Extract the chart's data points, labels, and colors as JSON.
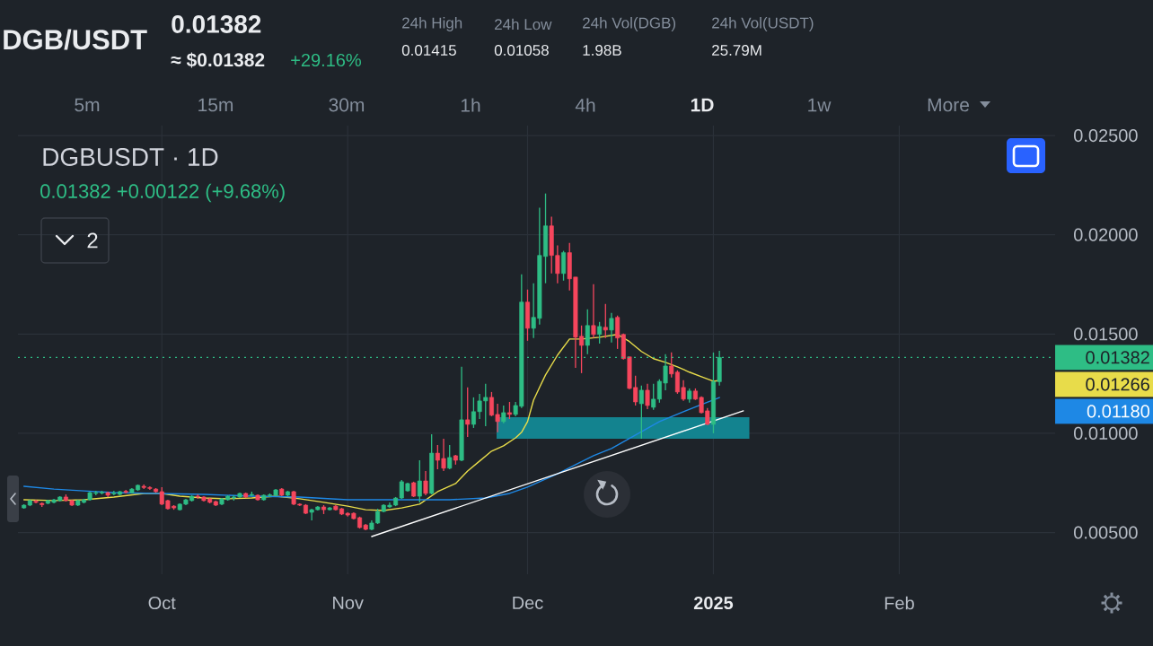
{
  "chart_data": {
    "type": "candlestick",
    "title": "DGBUSDT · 1D",
    "subtitle": "0.01382 +0.00122 (+9.68%)",
    "annotations": [
      "DGB/USDT",
      "0.01382",
      "≈ $0.01382",
      "+29.16%",
      "24h High",
      "0.01415",
      "24h Low",
      "0.01058",
      "24h Vol(DGB)",
      "1.98B",
      "24h Vol(USDT)",
      "25.79M",
      "5m",
      "15m",
      "30m",
      "1h",
      "4h",
      "1D",
      "1w",
      "More",
      "2",
      "0.01266",
      "0.01180"
    ],
    "x": [
      "2024-09-08",
      "2024-09-09",
      "2024-09-10",
      "2024-09-11",
      "2024-09-12",
      "2024-09-13",
      "2024-09-14",
      "2024-09-15",
      "2024-09-16",
      "2024-09-17",
      "2024-09-18",
      "2024-09-19",
      "2024-09-20",
      "2024-09-21",
      "2024-09-22",
      "2024-09-23",
      "2024-09-24",
      "2024-09-25",
      "2024-09-26",
      "2024-09-27",
      "2024-09-28",
      "2024-09-29",
      "2024-09-30",
      "2024-10-01",
      "2024-10-02",
      "2024-10-03",
      "2024-10-04",
      "2024-10-05",
      "2024-10-06",
      "2024-10-07",
      "2024-10-08",
      "2024-10-09",
      "2024-10-10",
      "2024-10-11",
      "2024-10-12",
      "2024-10-13",
      "2024-10-14",
      "2024-10-15",
      "2024-10-16",
      "2024-10-17",
      "2024-10-18",
      "2024-10-19",
      "2024-10-20",
      "2024-10-21",
      "2024-10-22",
      "2024-10-23",
      "2024-10-24",
      "2024-10-25",
      "2024-10-26",
      "2024-10-27",
      "2024-10-28",
      "2024-10-29",
      "2024-10-30",
      "2024-10-31",
      "2024-11-01",
      "2024-11-02",
      "2024-11-03",
      "2024-11-04",
      "2024-11-05",
      "2024-11-06",
      "2024-11-07",
      "2024-11-08",
      "2024-11-09",
      "2024-11-10",
      "2024-11-11",
      "2024-11-12",
      "2024-11-13",
      "2024-11-14",
      "2024-11-15",
      "2024-11-16",
      "2024-11-17",
      "2024-11-18",
      "2024-11-19",
      "2024-11-20",
      "2024-11-21",
      "2024-11-22",
      "2024-11-23",
      "2024-11-24",
      "2024-11-25",
      "2024-11-26",
      "2024-11-27",
      "2024-11-28",
      "2024-11-29",
      "2024-11-30",
      "2024-12-01",
      "2024-12-02",
      "2024-12-03",
      "2024-12-04",
      "2024-12-05",
      "2024-12-06",
      "2024-12-07",
      "2024-12-08",
      "2024-12-09",
      "2024-12-10",
      "2024-12-11",
      "2024-12-12",
      "2024-12-13",
      "2024-12-14",
      "2024-12-15",
      "2024-12-16",
      "2024-12-17",
      "2024-12-18",
      "2024-12-19",
      "2024-12-20",
      "2024-12-21",
      "2024-12-22",
      "2024-12-23",
      "2024-12-24",
      "2024-12-25",
      "2024-12-26",
      "2024-12-27",
      "2024-12-28",
      "2024-12-29",
      "2024-12-30",
      "2024-12-31",
      "2025-01-01",
      "2025-01-02"
    ],
    "ohlc": [
      [
        0.00624,
        0.00643,
        0.0062,
        0.00638
      ],
      [
        0.00638,
        0.00665,
        0.00633,
        0.00661
      ],
      [
        0.00658,
        0.00665,
        0.00647,
        0.00652
      ],
      [
        0.00647,
        0.00652,
        0.00629,
        0.0064
      ],
      [
        0.00647,
        0.00665,
        0.00643,
        0.00661
      ],
      [
        0.00652,
        0.0067,
        0.00647,
        0.00665
      ],
      [
        0.00661,
        0.00683,
        0.00656,
        0.00679
      ],
      [
        0.00679,
        0.00692,
        0.00656,
        0.00661
      ],
      [
        0.00661,
        0.00665,
        0.00633,
        0.00638
      ],
      [
        0.00638,
        0.00665,
        0.00633,
        0.00661
      ],
      [
        0.00652,
        0.0067,
        0.00647,
        0.00665
      ],
      [
        0.00665,
        0.00706,
        0.00661,
        0.00701
      ],
      [
        0.00697,
        0.0071,
        0.00688,
        0.00701
      ],
      [
        0.00699,
        0.0071,
        0.00692,
        0.00703
      ],
      [
        0.00701,
        0.00706,
        0.00679,
        0.00688
      ],
      [
        0.00695,
        0.0071,
        0.00688,
        0.00699
      ],
      [
        0.00692,
        0.0071,
        0.00688,
        0.00706
      ],
      [
        0.00708,
        0.00715,
        0.00697,
        0.00703
      ],
      [
        0.00701,
        0.00724,
        0.00697,
        0.00719
      ],
      [
        0.00715,
        0.00742,
        0.0071,
        0.00738
      ],
      [
        0.00733,
        0.00742,
        0.00719,
        0.00727
      ],
      [
        0.00727,
        0.00733,
        0.00715,
        0.00722
      ],
      [
        0.00719,
        0.00724,
        0.00701,
        0.00706
      ],
      [
        0.00706,
        0.00729,
        0.00638,
        0.00643
      ],
      [
        0.00661,
        0.00665,
        0.00615,
        0.0062
      ],
      [
        0.00633,
        0.00638,
        0.00615,
        0.00624
      ],
      [
        0.00615,
        0.00647,
        0.00611,
        0.00643
      ],
      [
        0.00643,
        0.0067,
        0.00638,
        0.00665
      ],
      [
        0.00661,
        0.00688,
        0.00656,
        0.00683
      ],
      [
        0.00683,
        0.00692,
        0.0067,
        0.00679
      ],
      [
        0.00679,
        0.00683,
        0.00656,
        0.00661
      ],
      [
        0.0067,
        0.00674,
        0.00647,
        0.00652
      ],
      [
        0.00656,
        0.00661,
        0.00633,
        0.00638
      ],
      [
        0.00643,
        0.00674,
        0.00638,
        0.0067
      ],
      [
        0.00665,
        0.00688,
        0.00661,
        0.00683
      ],
      [
        0.00674,
        0.00688,
        0.00661,
        0.00679
      ],
      [
        0.00679,
        0.00701,
        0.00674,
        0.00697
      ],
      [
        0.00697,
        0.00701,
        0.00674,
        0.00679
      ],
      [
        0.00688,
        0.00706,
        0.00683,
        0.00692
      ],
      [
        0.00688,
        0.00692,
        0.00661,
        0.00665
      ],
      [
        0.00665,
        0.00692,
        0.00661,
        0.00688
      ],
      [
        0.00686,
        0.00697,
        0.00679,
        0.0069
      ],
      [
        0.00688,
        0.00719,
        0.00683,
        0.00715
      ],
      [
        0.00719,
        0.00724,
        0.00683,
        0.00688
      ],
      [
        0.00688,
        0.0071,
        0.00683,
        0.00706
      ],
      [
        0.00706,
        0.0071,
        0.00638,
        0.00643
      ],
      [
        0.00643,
        0.00647,
        0.00633,
        0.00638
      ],
      [
        0.00638,
        0.00643,
        0.00593,
        0.00597
      ],
      [
        0.00602,
        0.0062,
        0.00561,
        0.00615
      ],
      [
        0.00615,
        0.00633,
        0.00611,
        0.00629
      ],
      [
        0.00629,
        0.00638,
        0.00593,
        0.00615
      ],
      [
        0.00615,
        0.00629,
        0.00611,
        0.00624
      ],
      [
        0.00633,
        0.00638,
        0.00611,
        0.00615
      ],
      [
        0.0062,
        0.00624,
        0.00588,
        0.00593
      ],
      [
        0.00597,
        0.00602,
        0.0058,
        0.00588
      ],
      [
        0.00597,
        0.00602,
        0.00566,
        0.0057
      ],
      [
        0.00575,
        0.0058,
        0.0052,
        0.00525
      ],
      [
        0.00538,
        0.00543,
        0.00511,
        0.00516
      ],
      [
        0.00516,
        0.00561,
        0.00511,
        0.00548
      ],
      [
        0.00548,
        0.0062,
        0.00543,
        0.00606
      ],
      [
        0.00606,
        0.00643,
        0.00602,
        0.00638
      ],
      [
        0.00629,
        0.00652,
        0.00624,
        0.00638
      ],
      [
        0.00638,
        0.00679,
        0.00633,
        0.00674
      ],
      [
        0.00674,
        0.00765,
        0.0067,
        0.00756
      ],
      [
        0.0071,
        0.00751,
        0.00706,
        0.00747
      ],
      [
        0.00751,
        0.00756,
        0.00679,
        0.00683
      ],
      [
        0.00683,
        0.00864,
        0.00652,
        0.0076
      ],
      [
        0.0076,
        0.0081,
        0.00688,
        0.00697
      ],
      [
        0.00697,
        0.00995,
        0.00692,
        0.009
      ],
      [
        0.009,
        0.00941,
        0.00819,
        0.00864
      ],
      [
        0.00873,
        0.00973,
        0.0081,
        0.00824
      ],
      [
        0.00824,
        0.00941,
        0.00819,
        0.00878
      ],
      [
        0.00887,
        0.00891,
        0.00842,
        0.00864
      ],
      [
        0.00864,
        0.01335,
        0.0086,
        0.01068
      ],
      [
        0.01068,
        0.01231,
        0.00982,
        0.01045
      ],
      [
        0.01045,
        0.01181,
        0.01027,
        0.01109
      ],
      [
        0.01109,
        0.01199,
        0.01072,
        0.01163
      ],
      [
        0.01163,
        0.01249,
        0.01036,
        0.01181
      ],
      [
        0.01181,
        0.01208,
        0.01086,
        0.01091
      ],
      [
        0.01095,
        0.01149,
        0.01005,
        0.01059
      ],
      [
        0.01059,
        0.0114,
        0.0105,
        0.01104
      ],
      [
        0.01104,
        0.01158,
        0.01072,
        0.01095
      ],
      [
        0.01095,
        0.01158,
        0.01086,
        0.0114
      ],
      [
        0.01136,
        0.01801,
        0.01127,
        0.01661
      ],
      [
        0.01661,
        0.01724,
        0.01466,
        0.01529
      ],
      [
        0.01529,
        0.01756,
        0.0148,
        0.01584
      ],
      [
        0.01579,
        0.02136,
        0.01548,
        0.01896
      ],
      [
        0.01891,
        0.02208,
        0.01756,
        0.02045
      ],
      [
        0.02045,
        0.02091,
        0.01805,
        0.01896
      ],
      [
        0.01896,
        0.01946,
        0.01756,
        0.01805
      ],
      [
        0.01805,
        0.01919,
        0.01769,
        0.0191
      ],
      [
        0.0191,
        0.01959,
        0.01719,
        0.01778
      ],
      [
        0.01787,
        0.01787,
        0.0133,
        0.01484
      ],
      [
        0.01489,
        0.01543,
        0.01303,
        0.01443
      ],
      [
        0.01443,
        0.01624,
        0.01398,
        0.01543
      ],
      [
        0.01543,
        0.01751,
        0.0148,
        0.01498
      ],
      [
        0.01498,
        0.01561,
        0.01452,
        0.01538
      ],
      [
        0.01534,
        0.01652,
        0.0148,
        0.0152
      ],
      [
        0.0152,
        0.01606,
        0.01457,
        0.01579
      ],
      [
        0.01584,
        0.01593,
        0.01425,
        0.0148
      ],
      [
        0.01498,
        0.01502,
        0.01371,
        0.01376
      ],
      [
        0.01385,
        0.01385,
        0.01222,
        0.01226
      ],
      [
        0.01231,
        0.0129,
        0.0114,
        0.01158
      ],
      [
        0.01149,
        0.0124,
        0.00973,
        0.01217
      ],
      [
        0.01217,
        0.01249,
        0.01122,
        0.0114
      ],
      [
        0.01131,
        0.01249,
        0.01118,
        0.01172
      ],
      [
        0.01172,
        0.01272,
        0.01154,
        0.01262
      ],
      [
        0.01253,
        0.01398,
        0.01217,
        0.01339
      ],
      [
        0.01339,
        0.01407,
        0.01281,
        0.01299
      ],
      [
        0.01308,
        0.01317,
        0.01199,
        0.01208
      ],
      [
        0.01231,
        0.01267,
        0.01163,
        0.01172
      ],
      [
        0.01172,
        0.01226,
        0.01154,
        0.01213
      ],
      [
        0.01213,
        0.01226,
        0.01168,
        0.01172
      ],
      [
        0.01181,
        0.01186,
        0.011,
        0.01104
      ],
      [
        0.01113,
        0.01127,
        0.01041,
        0.01045
      ],
      [
        0.01045,
        0.01407,
        0.01,
        0.0126
      ],
      [
        0.0126,
        0.01415,
        0.0124,
        0.01382
      ]
    ],
    "colors": [
      "#2ebd85",
      "#2ebd85",
      "#f6465d",
      "#f6465d",
      "#2ebd85",
      "#2ebd85",
      "#2ebd85",
      "#f6465d",
      "#f6465d",
      "#2ebd85",
      "#2ebd85",
      "#2ebd85",
      "#2ebd85",
      "#2ebd85",
      "#f6465d",
      "#2ebd85",
      "#2ebd85",
      "#f6465d",
      "#2ebd85",
      "#2ebd85",
      "#f6465d",
      "#f6465d",
      "#f6465d",
      "#f6465d",
      "#f6465d",
      "#f6465d",
      "#2ebd85",
      "#2ebd85",
      "#2ebd85",
      "#f6465d",
      "#f6465d",
      "#f6465d",
      "#f6465d",
      "#2ebd85",
      "#2ebd85",
      "#2ebd85",
      "#2ebd85",
      "#f6465d",
      "#2ebd85",
      "#f6465d",
      "#2ebd85",
      "#2ebd85",
      "#2ebd85",
      "#f6465d",
      "#2ebd85",
      "#f6465d",
      "#f6465d",
      "#f6465d",
      "#2ebd85",
      "#2ebd85",
      "#f6465d",
      "#2ebd85",
      "#f6465d",
      "#f6465d",
      "#f6465d",
      "#f6465d",
      "#f6465d",
      "#f6465d",
      "#2ebd85",
      "#2ebd85",
      "#2ebd85",
      "#2ebd85",
      "#2ebd85",
      "#2ebd85",
      "#2ebd85",
      "#f6465d",
      "#2ebd85",
      "#f6465d",
      "#2ebd85",
      "#f6465d",
      "#f6465d",
      "#2ebd85",
      "#f6465d",
      "#2ebd85",
      "#f6465d",
      "#2ebd85",
      "#2ebd85",
      "#2ebd85",
      "#f6465d",
      "#f6465d",
      "#2ebd85",
      "#f6465d",
      "#2ebd85",
      "#2ebd85",
      "#f6465d",
      "#2ebd85",
      "#2ebd85",
      "#2ebd85",
      "#f6465d",
      "#f6465d",
      "#2ebd85",
      "#f6465d",
      "#f6465d",
      "#f6465d",
      "#2ebd85",
      "#f6465d",
      "#2ebd85",
      "#f6465d",
      "#2ebd85",
      "#f6465d",
      "#f6465d",
      "#f6465d",
      "#f6465d",
      "#2ebd85",
      "#f6465d",
      "#2ebd85",
      "#2ebd85",
      "#2ebd85",
      "#f6465d",
      "#f6465d",
      "#f6465d",
      "#2ebd85",
      "#f6465d",
      "#f6465d",
      "#f6465d",
      "#2ebd85",
      "#2ebd85"
    ],
    "series": [
      {
        "type": "line",
        "color": "#e8dc4a",
        "x": [
          "2024-09-08",
          "2024-09-13",
          "2024-09-18",
          "2024-09-23",
          "2024-09-28",
          "2024-10-01",
          "2024-10-04",
          "2024-10-08",
          "2024-10-12",
          "2024-10-16",
          "2024-10-20",
          "2024-10-24",
          "2024-10-28",
          "2024-11-01",
          "2024-11-04",
          "2024-11-07",
          "2024-11-10",
          "2024-11-13",
          "2024-11-16",
          "2024-11-19",
          "2024-11-21",
          "2024-11-23",
          "2024-11-25",
          "2024-11-27",
          "2024-11-29",
          "2024-11-30",
          "2024-12-01",
          "2024-12-02",
          "2024-12-03",
          "2024-12-04",
          "2024-12-06",
          "2024-12-08",
          "2024-12-10",
          "2024-12-13",
          "2024-12-16",
          "2024-12-18",
          "2024-12-20",
          "2024-12-22",
          "2024-12-24",
          "2024-12-26",
          "2024-12-28",
          "2024-12-30",
          "2025-01-01",
          "2025-01-02"
        ],
        "values": [
          0.00665,
          0.00661,
          0.00665,
          0.00679,
          0.00697,
          0.00697,
          0.00683,
          0.00674,
          0.0067,
          0.00674,
          0.00683,
          0.0067,
          0.00652,
          0.00633,
          0.00615,
          0.00611,
          0.00624,
          0.00643,
          0.00706,
          0.00747,
          0.0081,
          0.0086,
          0.0091,
          0.00937,
          0.00977,
          0.01005,
          0.01059,
          0.01167,
          0.01231,
          0.01294,
          0.01394,
          0.01475,
          0.01475,
          0.01484,
          0.01498,
          0.01462,
          0.01412,
          0.01376,
          0.01357,
          0.01335,
          0.01308,
          0.01285,
          0.01262,
          0.01266
        ]
      },
      {
        "type": "line",
        "color": "#1e88e5",
        "x": [
          "2024-09-08",
          "2024-09-13",
          "2024-09-18",
          "2024-09-23",
          "2024-09-30",
          "2024-10-08",
          "2024-10-16",
          "2024-10-24",
          "2024-11-01",
          "2024-11-10",
          "2024-11-18",
          "2024-11-24",
          "2024-11-28",
          "2024-12-01",
          "2024-12-03",
          "2024-12-06",
          "2024-12-09",
          "2024-12-12",
          "2024-12-15",
          "2024-12-19",
          "2024-12-23",
          "2024-12-27",
          "2024-12-30",
          "2025-01-02"
        ],
        "values": [
          0.00733,
          0.00719,
          0.0071,
          0.00701,
          0.00697,
          0.00692,
          0.00683,
          0.00679,
          0.00665,
          0.00665,
          0.00665,
          0.00674,
          0.00697,
          0.00729,
          0.00756,
          0.00796,
          0.00842,
          0.00887,
          0.00923,
          0.00991,
          0.01059,
          0.01109,
          0.01145,
          0.0118
        ]
      },
      {
        "type": "line",
        "color": "#ffffff",
        "x": [
          "2024-11-05",
          "2025-01-06"
        ],
        "values": [
          0.0048,
          0.01113
        ]
      },
      {
        "type": "area",
        "color": "#13838f",
        "x": [
          "2024-11-25T20:00",
          "2025-01-07"
        ],
        "values": [
          null,
          null
        ],
        "lower": [
          0.00973,
          0.00973
        ],
        "upper": [
          0.01081,
          0.01081
        ]
      }
    ],
    "ref_lines": [
      {
        "axis": "y",
        "value": 0.01382,
        "label": "0.01382",
        "color": "#2ebd85",
        "line_style": "dotted"
      }
    ],
    "xlim": [
      "2024-09-07",
      "2025-02-27"
    ],
    "ylim": [
      0.0029,
      0.0255
    ],
    "xticks": [
      {
        "value": "2024-10-01",
        "label": "Oct"
      },
      {
        "value": "2024-11-01",
        "label": "Nov"
      },
      {
        "value": "2024-12-01",
        "label": "Dec"
      },
      {
        "value": "2025-01-01",
        "label": "2025"
      },
      {
        "value": "2025-02-01",
        "label": "Feb"
      }
    ],
    "yticks": [
      {
        "value": 0.005,
        "label": "0.00500"
      },
      {
        "value": 0.01,
        "label": "0.01000"
      },
      {
        "value": 0.015,
        "label": "0.01500"
      },
      {
        "value": 0.02,
        "label": "0.02000"
      },
      {
        "value": 0.025,
        "label": "0.02500"
      }
    ],
    "grid": true
  }
}
